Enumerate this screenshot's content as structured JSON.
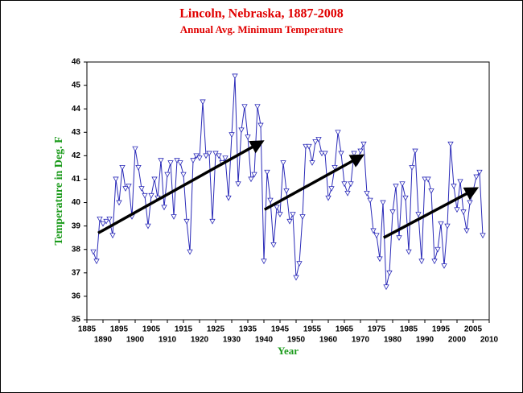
{
  "chart_data": {
    "type": "line",
    "title": "Lincoln, Nebraska, 1887-2008",
    "subtitle": "Annual Avg. Minimum Temperature",
    "xlabel": "Year",
    "ylabel": "Temperature in Deg. F",
    "x": [
      1887,
      1888,
      1889,
      1890,
      1891,
      1892,
      1893,
      1894,
      1895,
      1896,
      1897,
      1898,
      1899,
      1900,
      1901,
      1902,
      1903,
      1904,
      1905,
      1906,
      1907,
      1908,
      1909,
      1910,
      1911,
      1912,
      1913,
      1914,
      1915,
      1916,
      1917,
      1918,
      1919,
      1920,
      1921,
      1922,
      1923,
      1924,
      1925,
      1926,
      1927,
      1928,
      1929,
      1930,
      1931,
      1932,
      1933,
      1934,
      1935,
      1936,
      1937,
      1938,
      1939,
      1940,
      1941,
      1942,
      1943,
      1944,
      1945,
      1946,
      1947,
      1948,
      1949,
      1950,
      1951,
      1952,
      1953,
      1954,
      1955,
      1956,
      1957,
      1958,
      1959,
      1960,
      1961,
      1962,
      1963,
      1964,
      1965,
      1966,
      1967,
      1968,
      1969,
      1970,
      1971,
      1972,
      1973,
      1974,
      1975,
      1976,
      1977,
      1978,
      1979,
      1980,
      1981,
      1982,
      1983,
      1984,
      1985,
      1986,
      1987,
      1988,
      1989,
      1990,
      1991,
      1992,
      1993,
      1994,
      1995,
      1996,
      1997,
      1998,
      1999,
      2000,
      2001,
      2002,
      2003,
      2004,
      2005,
      2006,
      2007,
      2008
    ],
    "series": [
      {
        "color": "#2a2ab8",
        "values": [
          37.9,
          37.5,
          39.3,
          39.1,
          39.2,
          39.3,
          38.6,
          41.0,
          40.0,
          41.5,
          40.6,
          40.7,
          39.4,
          42.3,
          41.5,
          40.6,
          40.3,
          39.0,
          40.3,
          41.0,
          40.2,
          41.8,
          39.8,
          41.2,
          41.7,
          39.4,
          41.8,
          41.7,
          41.2,
          39.2,
          37.9,
          41.8,
          42.0,
          41.9,
          44.3,
          42.0,
          42.1,
          39.2,
          42.1,
          42.0,
          41.7,
          41.9,
          40.2,
          42.9,
          45.4,
          40.8,
          43.1,
          44.1,
          42.8,
          41.0,
          41.2,
          44.1,
          43.3,
          37.5,
          41.3,
          40.1,
          38.2,
          39.8,
          39.5,
          41.7,
          40.5,
          39.2,
          39.5,
          36.8,
          37.4,
          39.4,
          42.4,
          42.4,
          41.7,
          42.6,
          42.7,
          42.1,
          42.1,
          40.2,
          40.6,
          41.5,
          43.0,
          42.1,
          40.8,
          40.4,
          40.8,
          42.1,
          41.7,
          42.2,
          42.5,
          40.4,
          40.1,
          38.8,
          38.6,
          37.6,
          40.0,
          36.4,
          37.0,
          39.6,
          40.7,
          38.5,
          40.8,
          40.2,
          37.9,
          41.5,
          42.2,
          39.5,
          37.5,
          41.0,
          41.0,
          40.5,
          37.5,
          38.0,
          39.1,
          37.3,
          39.0,
          42.5,
          40.7,
          39.7,
          40.9,
          39.6,
          38.8,
          40.0,
          40.5,
          41.1,
          41.3,
          38.6
        ]
      }
    ],
    "trends": [
      {
        "x": [
          1888.5,
          1939.4
        ],
        "y": [
          38.7,
          42.6
        ]
      },
      {
        "x": [
          1940.2,
          1970.5
        ],
        "y": [
          39.7,
          42.0
        ]
      },
      {
        "x": [
          1977.2,
          2006
        ],
        "y": [
          38.5,
          40.6
        ]
      }
    ],
    "xlim": [
      1885,
      2010
    ],
    "xticks": [
      1885,
      1890,
      1895,
      1900,
      1905,
      1910,
      1915,
      1920,
      1925,
      1930,
      1935,
      1940,
      1945,
      1950,
      1955,
      1960,
      1965,
      1970,
      1975,
      1980,
      1985,
      1990,
      1995,
      2000,
      2005,
      2010
    ],
    "ylim": [
      35,
      46
    ],
    "yticks": [
      35,
      36,
      37,
      38,
      39,
      40,
      41,
      42,
      43,
      44,
      45,
      46
    ],
    "grid": false
  }
}
